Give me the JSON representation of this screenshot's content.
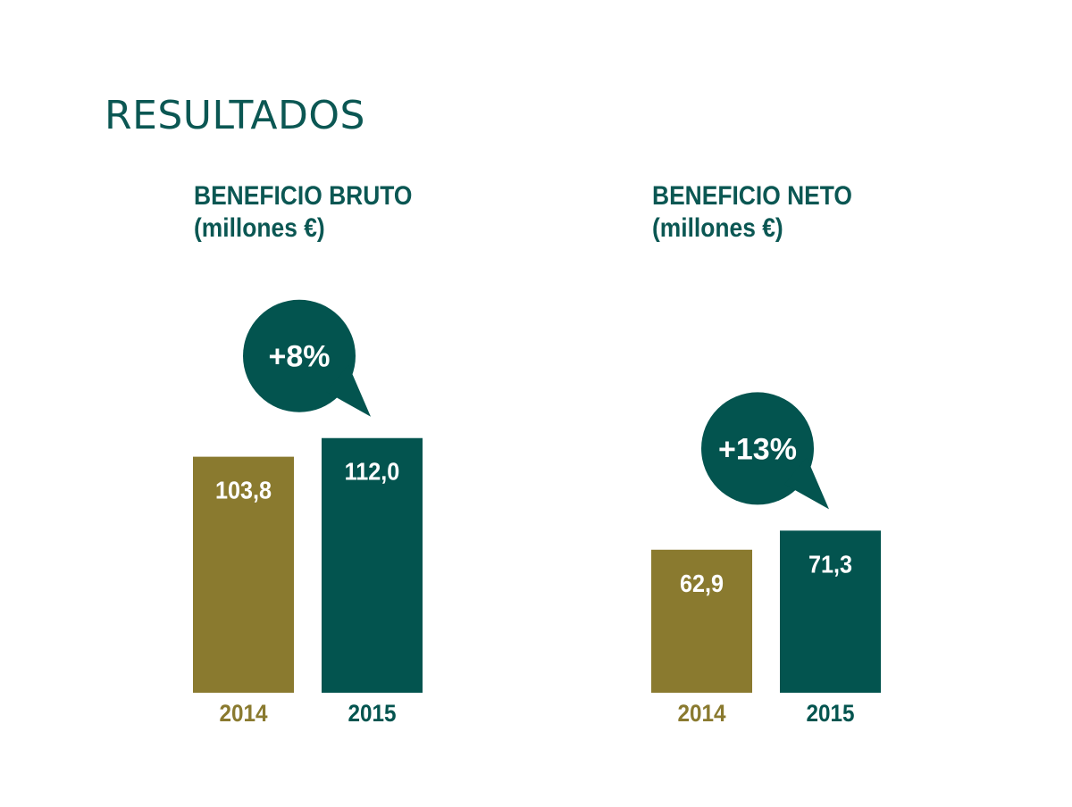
{
  "heading": "RESULTADOS",
  "colors": {
    "year_2014": "#8a7a2f",
    "year_2015": "#03544f",
    "text_on_bar": "#ffffff",
    "heading": "#0b5753"
  },
  "chart_data": [
    {
      "type": "bar",
      "title": [
        "BENEFICIO BRUTO",
        "(millones €)"
      ],
      "categories": [
        "2014",
        "2015"
      ],
      "values": [
        103.8,
        112.0
      ],
      "value_labels": [
        "103,8",
        "112,0"
      ],
      "change_label": "+8%",
      "ylim": [
        0,
        130
      ],
      "grid": false
    },
    {
      "type": "bar",
      "title": [
        "BENEFICIO NETO",
        "(millones €)"
      ],
      "categories": [
        "2014",
        "2015"
      ],
      "values": [
        62.9,
        71.3
      ],
      "value_labels": [
        "62,9",
        "71,3"
      ],
      "change_label": "+13%",
      "ylim": [
        0,
        130
      ],
      "grid": false
    }
  ]
}
